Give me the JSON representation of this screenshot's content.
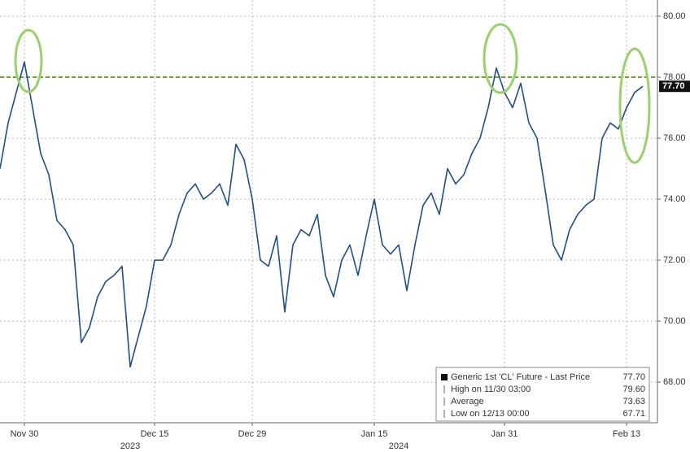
{
  "chart_data": {
    "type": "line",
    "categories": [
      null,
      null,
      null,
      "Nov 30",
      null,
      null,
      null,
      null,
      null,
      null,
      null,
      null,
      null,
      null,
      null,
      null,
      null,
      null,
      null,
      "Dec 15",
      null,
      null,
      null,
      null,
      null,
      null,
      null,
      null,
      null,
      null,
      null,
      "Dec 29",
      null,
      null,
      null,
      null,
      null,
      null,
      null,
      null,
      null,
      null,
      null,
      null,
      null,
      null,
      "Jan 15",
      null,
      null,
      null,
      null,
      null,
      null,
      null,
      null,
      null,
      null,
      null,
      null,
      null,
      null,
      null,
      "Jan 31",
      null,
      null,
      null,
      null,
      null,
      null,
      null,
      null,
      null,
      null,
      null,
      null,
      null,
      null,
      "Feb 13",
      null,
      null
    ],
    "year_labels": [
      "2023",
      "2024"
    ],
    "series": [
      {
        "name": "Generic 1st 'CL' Future - Last Price",
        "color": "#1f4e8c",
        "values": [
          75.0,
          76.5,
          77.5,
          78.5,
          77.0,
          75.5,
          74.8,
          73.3,
          73.0,
          72.5,
          69.3,
          69.8,
          70.8,
          71.3,
          71.5,
          71.8,
          68.5,
          69.5,
          70.5,
          72.0,
          72.0,
          72.5,
          73.5,
          74.2,
          74.5,
          74.0,
          74.2,
          74.5,
          73.8,
          75.8,
          75.3,
          74.0,
          72.0,
          71.8,
          72.8,
          70.3,
          72.5,
          73.0,
          72.8,
          73.5,
          71.5,
          70.8,
          72.0,
          72.5,
          71.5,
          72.8,
          74.0,
          72.5,
          72.2,
          72.5,
          71.0,
          72.5,
          73.8,
          74.2,
          73.5,
          75.0,
          74.5,
          74.8,
          75.5,
          76.0,
          77.0,
          78.3,
          77.5,
          77.0,
          77.8,
          76.5,
          76.0,
          74.3,
          72.5,
          72.0,
          73.0,
          73.5,
          73.8,
          74.0,
          76.0,
          76.5,
          76.3,
          77.0,
          77.5,
          77.7
        ]
      }
    ],
    "ylim": [
      66.67,
      80.53
    ],
    "yticks": [
      {
        "value": 68,
        "label": "68.00"
      },
      {
        "value": 70,
        "label": "70.00"
      },
      {
        "value": 72,
        "label": "72.00"
      },
      {
        "value": 74,
        "label": "74.00"
      },
      {
        "value": 76,
        "label": "76.00"
      },
      {
        "value": 78,
        "label": "78.00"
      },
      {
        "value": 80,
        "label": "80.00"
      }
    ],
    "grid": true,
    "reference_line": {
      "value": 78,
      "color": "#6a9a1f"
    },
    "last_price": {
      "value": 77.7,
      "label": "77.70"
    },
    "legend": [
      {
        "label": "Generic 1st 'CL' Future - Last Price",
        "value": 77.7,
        "value_label": "77.70"
      },
      {
        "label": "High on 11/30 03:00",
        "value": 79.6,
        "value_label": "79.60"
      },
      {
        "label": "Average",
        "value": 73.63,
        "value_label": "73.63"
      },
      {
        "label": "Low on 12/13 00:00",
        "value": 67.71,
        "value_label": "67.71"
      }
    ]
  }
}
